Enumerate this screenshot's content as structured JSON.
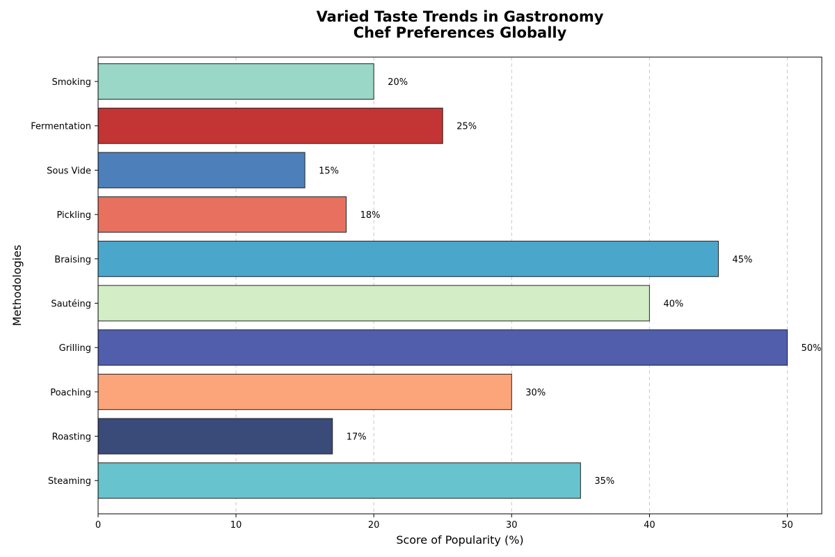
{
  "chart_data": {
    "type": "bar",
    "orientation": "horizontal",
    "title": [
      "Varied Taste Trends in Gastronomy",
      "Chef Preferences Globally"
    ],
    "xlabel": "Score of Popularity (%)",
    "ylabel": "Methodologies",
    "xlim": [
      0,
      52.5
    ],
    "xticks": [
      0,
      10,
      20,
      30,
      40,
      50
    ],
    "grid": "x-dashed",
    "categories": [
      "Steaming",
      "Roasting",
      "Poaching",
      "Grilling",
      "Sautéing",
      "Braising",
      "Pickling",
      "Sous Vide",
      "Fermentation",
      "Smoking"
    ],
    "values": [
      35,
      17,
      30,
      50,
      40,
      45,
      18,
      15,
      25,
      20
    ],
    "value_labels": [
      "35%",
      "17%",
      "30%",
      "50%",
      "40%",
      "45%",
      "18%",
      "15%",
      "25%",
      "20%"
    ],
    "colors": [
      "#67c3cd",
      "#3a4b7a",
      "#fca57a",
      "#515eab",
      "#d3edc7",
      "#4ba6cc",
      "#e8705e",
      "#4d7fba",
      "#c33435",
      "#9ad7c6"
    ]
  }
}
